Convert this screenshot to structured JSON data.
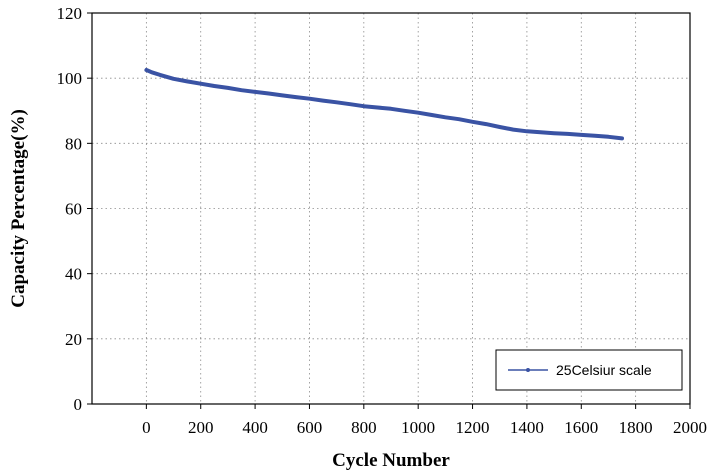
{
  "chart_data": {
    "type": "line",
    "title": "",
    "xlabel": "Cycle Number",
    "ylabel": "Capacity Percentage(%)",
    "xlim": [
      -200,
      2000
    ],
    "ylim": [
      0,
      120
    ],
    "xticks": [
      0,
      200,
      400,
      600,
      800,
      1000,
      1200,
      1400,
      1600,
      1800,
      2000
    ],
    "yticks": [
      0,
      20,
      40,
      60,
      80,
      100,
      120
    ],
    "grid": true,
    "legend_position": "bottom-right",
    "colors": {
      "series": "#3a53a4",
      "axis": "#000000",
      "grid": "#8c8c8c"
    },
    "series": [
      {
        "name": "25Celsiur scale",
        "x": [
          0,
          20,
          50,
          100,
          150,
          200,
          250,
          300,
          350,
          400,
          450,
          500,
          550,
          600,
          650,
          700,
          750,
          800,
          850,
          900,
          950,
          1000,
          1050,
          1100,
          1150,
          1200,
          1250,
          1300,
          1350,
          1400,
          1450,
          1500,
          1550,
          1600,
          1650,
          1700,
          1750
        ],
        "y": [
          102.5,
          101.8,
          101.0,
          99.8,
          99.0,
          98.3,
          97.6,
          97.0,
          96.3,
          95.8,
          95.3,
          94.7,
          94.2,
          93.7,
          93.1,
          92.6,
          92.0,
          91.4,
          91.0,
          90.6,
          90.0,
          89.4,
          88.7,
          88.0,
          87.4,
          86.6,
          85.9,
          85.0,
          84.2,
          83.7,
          83.4,
          83.1,
          82.9,
          82.6,
          82.3,
          82.0,
          81.5
        ]
      }
    ]
  }
}
